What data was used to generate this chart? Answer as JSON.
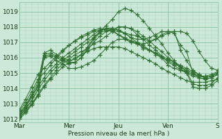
{
  "bg_color": "#cce8d8",
  "grid_color_major": "#88c0a0",
  "grid_color_minor": "#aad4be",
  "line_color": "#2d6e2d",
  "marker_color": "#2d6e2d",
  "xlabel": "Pression niveau de la mer( hPa )",
  "xlabel_color": "#1a3a1a",
  "tick_color": "#1a3a1a",
  "ylim": [
    1011.8,
    1019.6
  ],
  "yticks": [
    1012,
    1013,
    1014,
    1015,
    1016,
    1017,
    1018,
    1019
  ],
  "xtick_labels": [
    "Mar",
    "Mer",
    "Jeu",
    "Ven",
    "S"
  ],
  "xtick_positions": [
    0,
    48,
    96,
    144,
    192
  ],
  "xlim": [
    0,
    200
  ],
  "total_hours": 192,
  "series": [
    {
      "x": [
        0,
        6,
        12,
        18,
        24,
        30,
        36,
        42,
        48,
        54,
        60,
        66,
        72,
        78,
        84,
        90,
        96,
        102,
        108,
        114,
        120,
        126,
        132,
        138,
        144,
        150,
        156,
        162,
        168,
        174,
        180,
        186,
        192
      ],
      "y": [
        1012.1,
        1012.5,
        1013.0,
        1013.5,
        1016.0,
        1016.1,
        1015.8,
        1015.6,
        1015.3,
        1015.3,
        1015.4,
        1015.6,
        1015.8,
        1016.2,
        1016.6,
        1017.0,
        1017.2,
        1017.2,
        1017.1,
        1017.0,
        1016.6,
        1016.5,
        1016.2,
        1016.0,
        1015.5,
        1015.3,
        1015.2,
        1015.1,
        1014.9,
        1014.8,
        1014.8,
        1014.9,
        1015.1
      ]
    },
    {
      "x": [
        0,
        6,
        12,
        18,
        24,
        30,
        36,
        42,
        48,
        54,
        60,
        66,
        72,
        78,
        84,
        90,
        96,
        102,
        108,
        114,
        120,
        126,
        132,
        138,
        144,
        150,
        156,
        162,
        168,
        174,
        180,
        186,
        192
      ],
      "y": [
        1012.2,
        1012.7,
        1013.2,
        1013.9,
        1016.1,
        1016.2,
        1016.0,
        1015.8,
        1015.6,
        1015.7,
        1016.0,
        1016.5,
        1017.0,
        1017.4,
        1017.7,
        1017.8,
        1018.0,
        1018.0,
        1017.9,
        1017.5,
        1017.2,
        1016.8,
        1016.5,
        1016.1,
        1015.7,
        1015.5,
        1015.2,
        1015.0,
        1014.8,
        1014.7,
        1014.6,
        1014.7,
        1014.9
      ]
    },
    {
      "x": [
        0,
        6,
        12,
        18,
        24,
        30,
        36,
        42,
        48,
        54,
        60,
        66,
        72,
        78,
        84,
        90,
        96,
        102,
        108,
        114,
        120,
        126,
        132,
        138,
        144,
        150,
        156,
        162,
        168,
        174,
        180,
        186,
        192
      ],
      "y": [
        1012.3,
        1012.8,
        1013.5,
        1014.2,
        1016.2,
        1016.3,
        1016.1,
        1015.9,
        1015.7,
        1015.7,
        1016.0,
        1016.6,
        1017.2,
        1017.6,
        1017.8,
        1017.8,
        1017.7,
        1017.6,
        1017.5,
        1017.4,
        1017.2,
        1017.1,
        1017.2,
        1017.4,
        1017.6,
        1017.7,
        1017.7,
        1017.6,
        1017.1,
        1016.4,
        1015.8,
        1015.3,
        1015.2
      ]
    },
    {
      "x": [
        0,
        6,
        12,
        18,
        24,
        30,
        36,
        42,
        48,
        54,
        60,
        66,
        72,
        78,
        84,
        90,
        96,
        102,
        108,
        114,
        120,
        126,
        132,
        138,
        144,
        150,
        156,
        162,
        168,
        174,
        180,
        186,
        192
      ],
      "y": [
        1012.4,
        1012.9,
        1013.6,
        1014.4,
        1016.3,
        1016.5,
        1016.2,
        1016.0,
        1015.8,
        1015.9,
        1016.2,
        1016.7,
        1017.3,
        1017.7,
        1017.9,
        1017.8,
        1017.5,
        1017.2,
        1017.0,
        1016.9,
        1016.9,
        1017.0,
        1017.2,
        1017.5,
        1017.7,
        1017.7,
        1016.5,
        1015.8,
        1015.2,
        1014.9,
        1014.7,
        1014.8,
        1015.0
      ]
    },
    {
      "x": [
        0,
        6,
        12,
        18,
        24,
        30,
        36,
        42,
        48,
        54,
        60,
        66,
        72,
        78,
        84,
        90,
        96,
        102,
        108,
        114,
        120,
        126,
        132,
        138,
        144,
        150,
        156,
        162,
        168,
        174,
        180,
        186,
        192
      ],
      "y": [
        1012.5,
        1013.1,
        1013.8,
        1014.6,
        1015.0,
        1015.5,
        1016.0,
        1016.4,
        1016.8,
        1017.1,
        1017.3,
        1017.5,
        1017.7,
        1017.8,
        1017.9,
        1017.9,
        1017.8,
        1017.6,
        1017.3,
        1017.0,
        1016.8,
        1016.5,
        1016.3,
        1016.0,
        1015.8,
        1015.6,
        1015.4,
        1015.2,
        1015.0,
        1014.8,
        1014.7,
        1014.8,
        1015.0
      ]
    },
    {
      "x": [
        0,
        6,
        12,
        18,
        24,
        30,
        36,
        42,
        48,
        54,
        60,
        66,
        72,
        78,
        84,
        90,
        96,
        102,
        108,
        114,
        120,
        126,
        132,
        138,
        144,
        150,
        156,
        162,
        168,
        174,
        180,
        186,
        192
      ],
      "y": [
        1012.6,
        1013.3,
        1014.1,
        1014.9,
        1015.3,
        1015.7,
        1016.1,
        1016.5,
        1016.8,
        1017.1,
        1017.4,
        1017.6,
        1017.8,
        1017.9,
        1017.8,
        1017.7,
        1017.5,
        1017.3,
        1017.1,
        1016.9,
        1016.7,
        1016.5,
        1016.3,
        1016.1,
        1015.9,
        1015.7,
        1015.5,
        1015.3,
        1015.1,
        1014.9,
        1014.7,
        1014.8,
        1015.0
      ]
    },
    {
      "x": [
        0,
        6,
        12,
        18,
        24,
        30,
        36,
        42,
        48,
        54,
        60,
        66,
        72,
        78,
        84,
        90,
        96,
        102,
        108,
        114,
        120,
        126,
        132,
        138,
        144,
        150,
        156,
        162,
        168,
        174,
        180,
        186,
        192
      ],
      "y": [
        1012.0,
        1012.4,
        1012.9,
        1013.5,
        1014.1,
        1014.6,
        1015.0,
        1015.4,
        1015.7,
        1016.0,
        1016.2,
        1016.4,
        1016.6,
        1016.7,
        1016.7,
        1016.7,
        1016.7,
        1016.6,
        1016.4,
        1016.2,
        1016.0,
        1015.8,
        1015.6,
        1015.3,
        1015.1,
        1014.9,
        1014.7,
        1014.5,
        1014.4,
        1014.4,
        1014.4,
        1014.5,
        1014.6
      ]
    },
    {
      "x": [
        0,
        6,
        12,
        18,
        24,
        30,
        36,
        42,
        48,
        54,
        60,
        66,
        72,
        78,
        84,
        90,
        96,
        102,
        108,
        114,
        120,
        126,
        132,
        138,
        144,
        150,
        156,
        162,
        168,
        174,
        180,
        186,
        192
      ],
      "y": [
        1012.1,
        1012.5,
        1013.0,
        1013.6,
        1014.2,
        1014.7,
        1015.2,
        1015.6,
        1015.9,
        1016.2,
        1016.4,
        1016.6,
        1016.9,
        1017.1,
        1017.4,
        1017.7,
        1018.0,
        1018.0,
        1017.9,
        1017.7,
        1017.4,
        1017.1,
        1016.7,
        1016.4,
        1016.0,
        1015.7,
        1015.4,
        1015.1,
        1014.3,
        1014.2,
        1014.2,
        1014.3,
        1014.7
      ]
    },
    {
      "x": [
        0,
        6,
        12,
        18,
        24,
        30,
        36,
        42,
        48,
        54,
        60,
        66,
        72,
        78,
        84,
        90,
        96,
        102,
        108,
        114,
        120,
        126,
        132,
        138,
        144,
        150,
        156,
        162,
        168,
        174,
        180,
        186,
        192
      ],
      "y": [
        1012.2,
        1012.6,
        1013.2,
        1013.9,
        1014.5,
        1015.0,
        1015.4,
        1015.8,
        1016.1,
        1016.4,
        1016.7,
        1017.0,
        1017.3,
        1017.7,
        1018.1,
        1018.5,
        1019.0,
        1019.2,
        1019.1,
        1018.8,
        1018.4,
        1017.9,
        1017.4,
        1016.9,
        1016.3,
        1015.8,
        1015.3,
        1015.0,
        1014.1,
        1014.0,
        1014.0,
        1014.2,
        1014.5
      ]
    },
    {
      "x": [
        0,
        6,
        12,
        18,
        24,
        30,
        36,
        42,
        48,
        54,
        60,
        66,
        72,
        78,
        84,
        90,
        96,
        102,
        108,
        114,
        120,
        126,
        132,
        138,
        144,
        150,
        156,
        162,
        168,
        174,
        180,
        186,
        192
      ],
      "y": [
        1012.3,
        1012.8,
        1013.4,
        1014.1,
        1014.7,
        1015.2,
        1015.6,
        1016.0,
        1016.3,
        1016.6,
        1016.9,
        1017.2,
        1017.5,
        1017.8,
        1017.9,
        1017.9,
        1017.8,
        1017.6,
        1017.3,
        1017.2,
        1017.2,
        1017.3,
        1017.5,
        1017.7,
        1017.7,
        1017.6,
        1016.8,
        1016.4,
        1015.0,
        1014.7,
        1014.6,
        1014.7,
        1014.9
      ]
    }
  ]
}
